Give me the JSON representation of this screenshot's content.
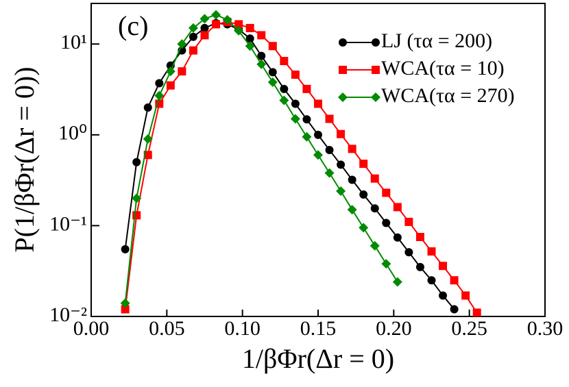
{
  "chart_data": {
    "type": "line",
    "xlabel": "1/βΦr(Δr = 0)",
    "ylabel": "P(1/βΦr(Δr = 0))",
    "annotation": "(c)",
    "xlim": [
      0,
      0.3
    ],
    "xticks": [
      {
        "value": 0,
        "label": "0.00"
      },
      {
        "value": 0.05,
        "label": "0.05"
      },
      {
        "value": 0.1,
        "label": "0.10"
      },
      {
        "value": 0.15,
        "label": "0.15"
      },
      {
        "value": 0.2,
        "label": "0.20"
      },
      {
        "value": 0.25,
        "label": "0.25"
      },
      {
        "value": 0.3,
        "label": "0.30"
      }
    ],
    "ylim": [
      0.01,
      28
    ],
    "log_y": true,
    "yticks": [
      {
        "value": 0.01,
        "label": "10⁻²"
      },
      {
        "value": 0.1,
        "label": "10⁻¹"
      },
      {
        "value": 1,
        "label": "10⁰"
      },
      {
        "value": 10,
        "label": "10¹"
      }
    ],
    "legend": "upper right",
    "series": [
      {
        "name": "LJ (τα = 200)",
        "color": "#000000",
        "marker": "circle",
        "x": [
          0.0225,
          0.03,
          0.0375,
          0.045,
          0.0525,
          0.06,
          0.0675,
          0.075,
          0.0825,
          0.09,
          0.0975,
          0.105,
          0.1125,
          0.12,
          0.1275,
          0.135,
          0.1425,
          0.15,
          0.1575,
          0.165,
          0.1725,
          0.18,
          0.1875,
          0.195,
          0.2025,
          0.21,
          0.2175,
          0.225,
          0.2325,
          0.24
        ],
        "values": [
          0.055,
          0.5,
          2.0,
          3.7,
          5.8,
          8.5,
          12,
          15,
          17,
          16.5,
          14.5,
          11.5,
          7.4,
          4.9,
          3.2,
          2.2,
          1.48,
          1.0,
          0.68,
          0.47,
          0.32,
          0.22,
          0.155,
          0.107,
          0.074,
          0.051,
          0.035,
          0.025,
          0.017,
          0.012
        ]
      },
      {
        "name": "WCA(τα = 10)",
        "color": "#ff0000",
        "marker": "square",
        "x": [
          0.0225,
          0.03,
          0.0375,
          0.045,
          0.0525,
          0.06,
          0.0675,
          0.075,
          0.0825,
          0.09,
          0.0975,
          0.105,
          0.1125,
          0.12,
          0.1275,
          0.135,
          0.1425,
          0.15,
          0.1575,
          0.165,
          0.1725,
          0.18,
          0.1875,
          0.195,
          0.2025,
          0.21,
          0.2175,
          0.225,
          0.2325,
          0.24,
          0.2475,
          0.255
        ],
        "values": [
          0.012,
          0.13,
          0.6,
          2.2,
          3.5,
          5,
          8.5,
          12.5,
          16.5,
          17.5,
          16.5,
          15,
          12.5,
          9.5,
          6.5,
          4.6,
          3.2,
          2.2,
          1.5,
          1.02,
          0.7,
          0.48,
          0.33,
          0.23,
          0.16,
          0.11,
          0.075,
          0.052,
          0.036,
          0.025,
          0.017,
          0.011
        ]
      },
      {
        "name": "WCA(τα = 270)",
        "color": "#008b00",
        "marker": "diamond",
        "x": [
          0.0225,
          0.03,
          0.0375,
          0.045,
          0.0525,
          0.06,
          0.0675,
          0.075,
          0.0825,
          0.09,
          0.0975,
          0.105,
          0.1125,
          0.12,
          0.1275,
          0.135,
          0.1425,
          0.15,
          0.1575,
          0.165,
          0.1725,
          0.18,
          0.1875,
          0.195,
          0.2025
        ],
        "values": [
          0.014,
          0.2,
          0.9,
          2.7,
          5,
          10,
          15,
          19,
          21,
          18.5,
          14,
          9.5,
          6.0,
          3.8,
          2.4,
          1.5,
          0.95,
          0.6,
          0.38,
          0.24,
          0.15,
          0.095,
          0.06,
          0.038,
          0.024
        ]
      }
    ]
  }
}
